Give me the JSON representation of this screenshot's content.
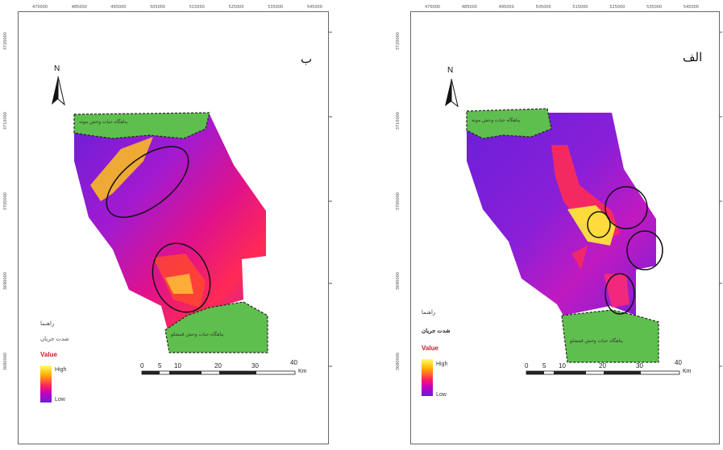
{
  "right_map": {
    "label": "الف",
    "north": "N",
    "legend": {
      "title": "راهنما",
      "subtitle": "شدت جریان",
      "value": "Value",
      "high": "High",
      "low": "Low"
    },
    "scale": {
      "ticks": [
        "0",
        "5",
        "10",
        "20",
        "30",
        "40"
      ],
      "unit": "Km"
    },
    "region_labels": [
      "پناهگاه حیات وحش موته",
      "پناهگاه حیات وحش قمشلو"
    ],
    "top_ticks": [
      "470000",
      "485000",
      "495000",
      "505000",
      "515000",
      "525000",
      "535000",
      "545000"
    ],
    "left_ticks": [
      "3720000",
      "3710000",
      "3700000",
      "3690000",
      "3680000"
    ]
  },
  "left_map": {
    "label": "ب",
    "north": "N",
    "legend": {
      "title": "راهنما",
      "subtitle": "شدت جریان",
      "value": "Value",
      "high": "High",
      "low": "Low"
    },
    "scale": {
      "ticks": [
        "0",
        "5",
        "10",
        "20",
        "30",
        "40"
      ],
      "unit": "Km"
    },
    "region_labels": [
      "پناهگاه حیات وحش موته",
      "پناهگاه حیات وحش قمشلو"
    ],
    "top_ticks": [
      "470000",
      "485000",
      "495000",
      "505000",
      "515000",
      "525000",
      "535000",
      "545000"
    ],
    "left_ticks": [
      "3720000",
      "3710000",
      "3700000",
      "3690000",
      "3680000"
    ]
  },
  "colors": {
    "high": "#ffff66",
    "mid": "#ff2060",
    "low": "#6a1fd8",
    "protected_area": "#5fbf4e"
  }
}
